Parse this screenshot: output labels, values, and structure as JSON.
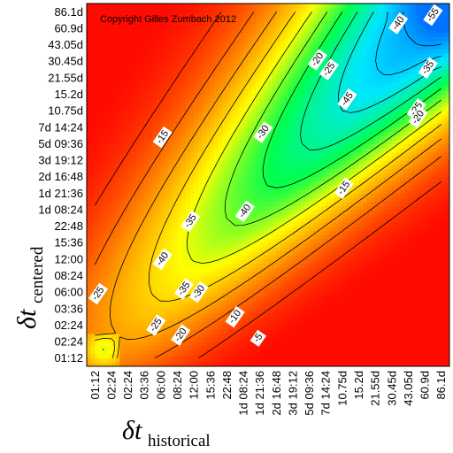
{
  "chart_data": {
    "type": "heatmap",
    "title": "",
    "copyright": "Copyright Gilles Zumbach 2012",
    "x_ticks": [
      "01:12",
      "02:24",
      "02:24",
      "03:36",
      "06:00",
      "08:24",
      "12:00",
      "15:36",
      "22:48",
      "1d 08:24",
      "1d 21:36",
      "2d 16:48",
      "3d 19:12",
      "5d 09:36",
      "7d 14:24",
      "10.75d",
      "15.2d",
      "21.55d",
      "30.45d",
      "43.05d",
      "60.9d",
      "86.1d"
    ],
    "y_ticks": [
      "01:12",
      "02:24",
      "02:24",
      "03:36",
      "06:00",
      "08:24",
      "12:00",
      "15:36",
      "22:48",
      "1d 08:24",
      "1d 21:36",
      "2d 16:48",
      "3d 19:12",
      "5d 09:36",
      "7d 14:24",
      "10.75d",
      "15.2d",
      "21.55d",
      "30.45d",
      "43.05d",
      "60.9d",
      "86.1d"
    ],
    "xlabel": {
      "symbol": "δt",
      "subscript": "historical"
    },
    "ylabel": {
      "symbol": "δt",
      "subscript": "centered"
    },
    "contour_levels": [
      -55,
      -50,
      -45,
      -40,
      -35,
      -30,
      -25,
      -20,
      -15,
      -10,
      -5
    ],
    "contour_labels": [
      {
        "text": "-55",
        "i": 20.5,
        "j": 20.8
      },
      {
        "text": "-40",
        "i": 18.4,
        "j": 20.3
      },
      {
        "text": "-20",
        "i": 13.5,
        "j": 18.1
      },
      {
        "text": "-25",
        "i": 14.2,
        "j": 17.5
      },
      {
        "text": "-35",
        "i": 20.2,
        "j": 17.6
      },
      {
        "text": "-45",
        "i": 15.3,
        "j": 15.7
      },
      {
        "text": "-25",
        "i": 19.5,
        "j": 15.1
      },
      {
        "text": "-20",
        "i": 19.6,
        "j": 14.6
      },
      {
        "text": "-30",
        "i": 10.2,
        "j": 13.7
      },
      {
        "text": "-15",
        "i": 4.1,
        "j": 13.4
      },
      {
        "text": "-15",
        "i": 15.1,
        "j": 10.3
      },
      {
        "text": "-40",
        "i": 9.1,
        "j": 8.9
      },
      {
        "text": "-35",
        "i": 5.8,
        "j": 8.3
      },
      {
        "text": "-40",
        "i": 4.1,
        "j": 6.0
      },
      {
        "text": "-35",
        "i": 5.4,
        "j": 4.2
      },
      {
        "text": "-30",
        "i": 6.3,
        "j": 4.0
      },
      {
        "text": "-25",
        "i": 0.2,
        "j": 3.9
      },
      {
        "text": "-10",
        "i": 8.5,
        "j": 2.5
      },
      {
        "text": "-25",
        "i": 3.7,
        "j": 2.0
      },
      {
        "text": "-20",
        "i": 5.2,
        "j": 1.4
      },
      {
        "text": "-5",
        "i": 9.9,
        "j": 1.2
      }
    ],
    "color_scale": [
      "#0073ff",
      "#00e6ff",
      "#00ff4d",
      "#ffff00",
      "#ff8000",
      "#ff0000"
    ],
    "zlim": [
      -60,
      0
    ],
    "grid": false,
    "legend": "none"
  }
}
